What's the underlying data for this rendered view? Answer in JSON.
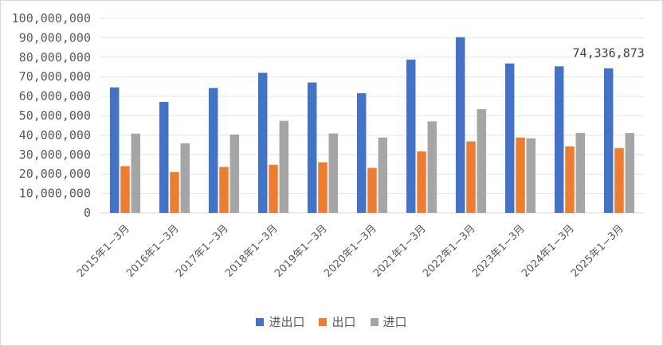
{
  "chart_data": {
    "type": "bar",
    "categories": [
      "2015年1−3月",
      "2016年1−3月",
      "2017年1−3月",
      "2018年1−3月",
      "2019年1−3月",
      "2020年1−3月",
      "2021年1−3月",
      "2022年1−3月",
      "2023年1−3月",
      "2024年1−3月",
      "2025年1−3月"
    ],
    "series": [
      {
        "name": "进出口",
        "color": "#4472c4",
        "values": [
          64500000,
          57000000,
          64200000,
          72000000,
          67000000,
          61500000,
          78800000,
          90300000,
          76800000,
          75300000,
          74336873
        ]
      },
      {
        "name": "出口",
        "color": "#ed7d31",
        "values": [
          24000000,
          21000000,
          23600000,
          24700000,
          26000000,
          23100000,
          31600000,
          36700000,
          38700000,
          34200000,
          33300000
        ]
      },
      {
        "name": "进口",
        "color": "#a5a5a5",
        "values": [
          40700000,
          35800000,
          40300000,
          47300000,
          40800000,
          38700000,
          47000000,
          53300000,
          38300000,
          41100000,
          41000000
        ]
      }
    ],
    "y_ticks": [
      "0",
      "10,000,000",
      "20,000,000",
      "30,000,000",
      "40,000,000",
      "50,000,000",
      "60,000,000",
      "70,000,000",
      "80,000,000",
      "90,000,000",
      "100,000,000"
    ],
    "ylim": [
      0,
      100000000
    ],
    "grid": true,
    "legend_position": "bottom",
    "annotations": [
      {
        "series": "进出口",
        "category": "2025年1−3月",
        "text": "74,336,873"
      }
    ]
  }
}
